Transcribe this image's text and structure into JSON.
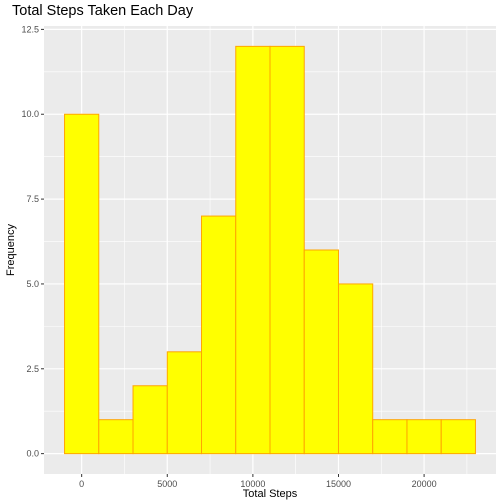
{
  "chart_data": {
    "type": "bar",
    "title": "Total Steps Taken Each Day",
    "xlabel": "Total Steps",
    "ylabel": "Frequency",
    "bin_width": 2000,
    "bins": [
      {
        "center": 0,
        "count": 10
      },
      {
        "center": 2000,
        "count": 1
      },
      {
        "center": 4000,
        "count": 2
      },
      {
        "center": 6000,
        "count": 3
      },
      {
        "center": 8000,
        "count": 7
      },
      {
        "center": 10000,
        "count": 12
      },
      {
        "center": 12000,
        "count": 12
      },
      {
        "center": 14000,
        "count": 6
      },
      {
        "center": 16000,
        "count": 5
      },
      {
        "center": 18000,
        "count": 1
      },
      {
        "center": 20000,
        "count": 1
      },
      {
        "center": 22000,
        "count": 1
      }
    ],
    "x_ticks": [
      {
        "value": 0,
        "label": "0"
      },
      {
        "value": 5000,
        "label": "5000"
      },
      {
        "value": 10000,
        "label": "10000"
      },
      {
        "value": 15000,
        "label": "15000"
      },
      {
        "value": 20000,
        "label": "20000"
      }
    ],
    "y_ticks": [
      {
        "value": 0,
        "label": "0.0"
      },
      {
        "value": 2.5,
        "label": "2.5"
      },
      {
        "value": 5,
        "label": "5.0"
      },
      {
        "value": 7.5,
        "label": "7.5"
      },
      {
        "value": 10,
        "label": "10.0"
      },
      {
        "value": 12.5,
        "label": "12.5"
      }
    ],
    "xlim": [
      -2200,
      24200
    ],
    "ylim": [
      -0.6,
      12.6
    ],
    "grid": true,
    "colors": {
      "bar_fill": "#ffff00",
      "bar_outline": "#ffa500",
      "panel_background": "#ebebeb",
      "grid": "#ffffff"
    }
  }
}
